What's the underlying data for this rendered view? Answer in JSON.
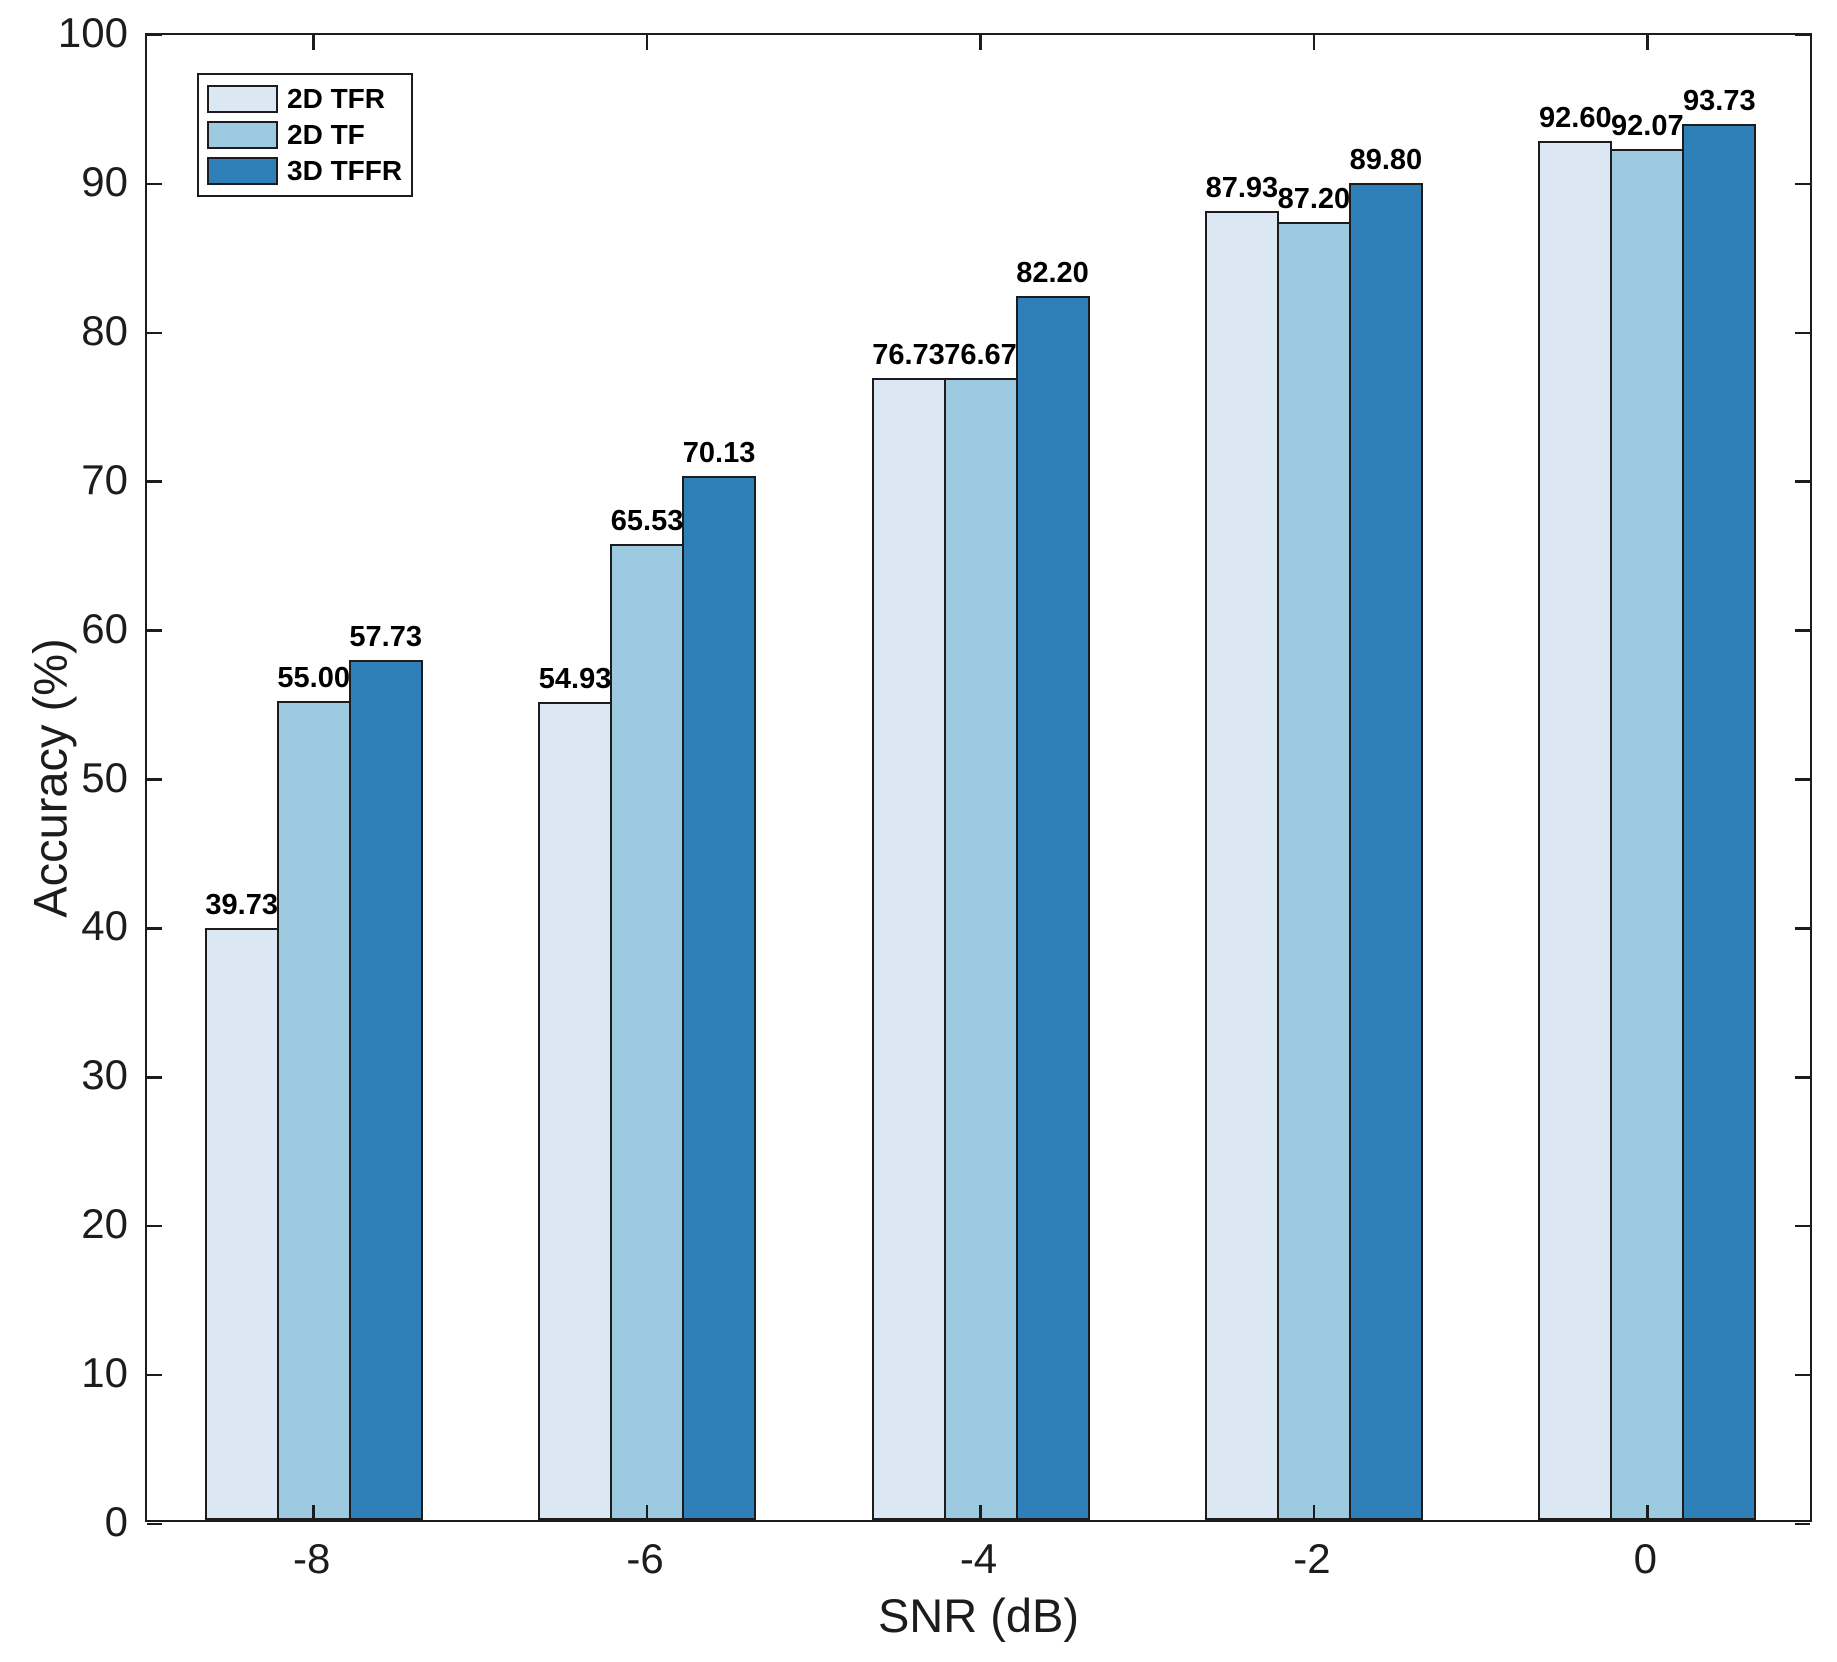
{
  "chart_data": {
    "type": "bar",
    "title": "",
    "xlabel": "SNR (dB)",
    "ylabel": "Accuracy (%)",
    "categories": [
      "-8",
      "-6",
      "-4",
      "-2",
      "0"
    ],
    "series": [
      {
        "name": "2D TFR",
        "color": "#dbe8f4",
        "values": [
          39.73,
          54.93,
          76.73,
          87.93,
          92.6
        ]
      },
      {
        "name": "2D TF",
        "color": "#9ecae1",
        "values": [
          55.0,
          65.53,
          76.67,
          87.2,
          92.07
        ]
      },
      {
        "name": "3D TFFR",
        "color": "#2f7fb9",
        "values": [
          57.73,
          70.13,
          82.2,
          89.8,
          93.73
        ]
      }
    ],
    "ylim": [
      0,
      100
    ],
    "ytick_step": 10,
    "ytick_labels": [
      "0",
      "10",
      "20",
      "30",
      "40",
      "50",
      "60",
      "70",
      "80",
      "90",
      "100"
    ],
    "value_label_decimals": 2,
    "bar_edge_color": "#1c1c1c",
    "axis_color": "#1c1c1c",
    "legend_position": "top-left",
    "grid": false
  }
}
